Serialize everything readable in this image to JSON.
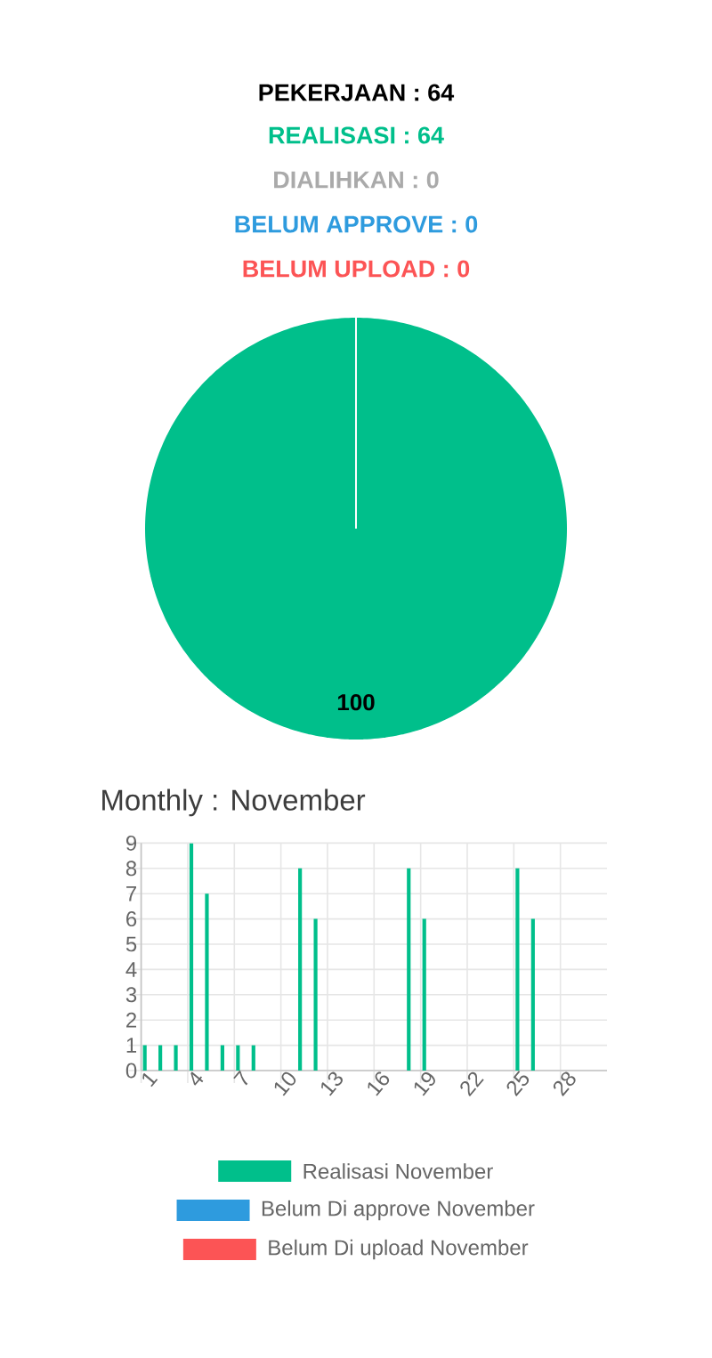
{
  "chart_data": [
    {
      "type": "pie",
      "title": "PEKERJAAN : 64",
      "categories": [
        "REALISASI : 64",
        "DIALIHKAN : 0",
        "BELUM APPROVE : 0",
        "BELUM UPLOAD : 0"
      ],
      "values": [
        100,
        0,
        0,
        0
      ],
      "colors": [
        "#00bf8b",
        "#aaaaaa",
        "#2e9bde",
        "#fc5455"
      ],
      "value_labels": [
        "100",
        null,
        null,
        null
      ]
    },
    {
      "type": "bar",
      "title": "Monthly : November",
      "categories": [
        "1",
        null,
        null,
        "4",
        null,
        null,
        "7",
        null,
        null,
        "10",
        null,
        null,
        "13",
        null,
        null,
        "16",
        null,
        null,
        "19",
        null,
        null,
        "22",
        null,
        null,
        "25",
        null,
        null,
        "28",
        null,
        null
      ],
      "series": [
        {
          "name": "Realisasi November",
          "color": "#00bf8b",
          "values": [
            1,
            1,
            1,
            9,
            7,
            1,
            1,
            1,
            0,
            0,
            8,
            6,
            0,
            0,
            0,
            0,
            0,
            8,
            6,
            0,
            0,
            0,
            0,
            0,
            8,
            6,
            0,
            0,
            0,
            0
          ]
        },
        {
          "name": "Belum Di approve November",
          "color": "#2e9bde",
          "values": [
            0,
            0,
            0,
            0,
            0,
            0,
            0,
            0,
            0,
            0,
            0,
            0,
            0,
            0,
            0,
            0,
            0,
            0,
            0,
            0,
            0,
            0,
            0,
            0,
            0,
            0,
            0,
            0,
            0,
            0
          ]
        },
        {
          "name": "Belum Di upload November",
          "color": "#fc5455",
          "values": [
            0,
            0,
            0,
            0,
            0,
            0,
            0,
            0,
            0,
            0,
            0,
            0,
            0,
            0,
            0,
            0,
            0,
            0,
            0,
            0,
            0,
            0,
            0,
            0,
            0,
            0,
            0,
            0,
            0,
            0
          ]
        }
      ],
      "ylim": [
        0,
        9
      ],
      "yticks": [
        0,
        1,
        2,
        3,
        4,
        5,
        6,
        7,
        8,
        9
      ],
      "grid": true,
      "legend": "bottom"
    }
  ]
}
